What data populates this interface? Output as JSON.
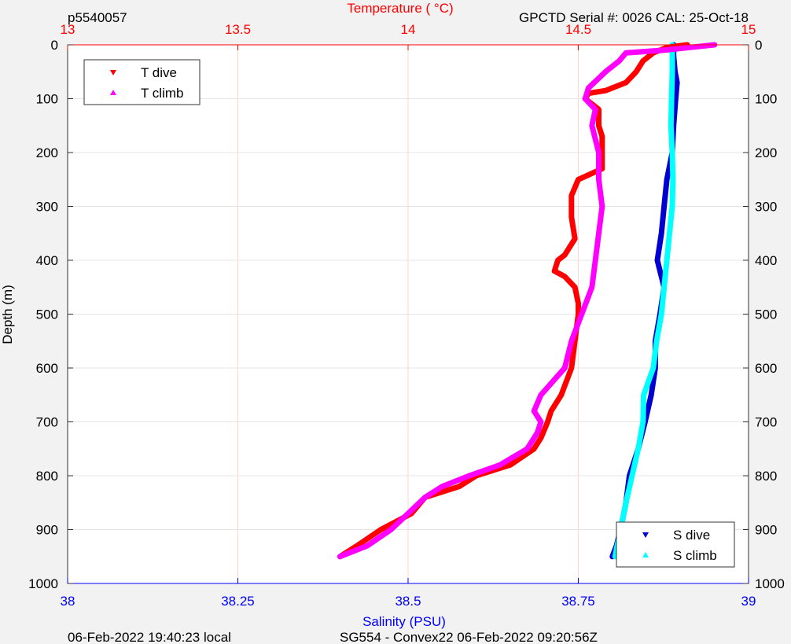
{
  "header": {
    "profile_id": "p5540057",
    "serial_cal": "GPCTD Serial #: 0026 CAL: 25-Oct-18"
  },
  "footer": {
    "local_time": "06-Feb-2022 19:40:23 local",
    "mission": "SG554 - Convex22 06-Feb-2022 09:20:56Z"
  },
  "colors": {
    "background": "#f2f2f2",
    "plot_bg": "#ffffff",
    "temperature_axis": "#ff0000",
    "salinity_axis": "#0000ff",
    "t_dive": "#ff0000",
    "t_climb": "#ff00ff",
    "s_dive": "#0000d0",
    "s_climb": "#00ffff"
  },
  "chart_data": {
    "type": "line",
    "y_axis": {
      "label": "Depth (m)",
      "range": [
        0,
        1000
      ],
      "reversed": true,
      "ticks": [
        0,
        100,
        200,
        300,
        400,
        500,
        600,
        700,
        800,
        900,
        1000
      ],
      "tick_labels": [
        "0",
        "100",
        "200",
        "300",
        "400",
        "500",
        "600",
        "700",
        "800",
        "900",
        "1000"
      ]
    },
    "x_top": {
      "label": "Temperature (    °C)",
      "range": [
        13,
        15
      ],
      "ticks": [
        13,
        13.5,
        14,
        14.5,
        15
      ],
      "tick_labels": [
        "13",
        "13.5",
        "14",
        "14.5",
        "15"
      ]
    },
    "x_bottom": {
      "label": "Salinity (PSU)",
      "range": [
        38,
        39
      ],
      "ticks": [
        38,
        38.25,
        38.5,
        38.75,
        39
      ],
      "tick_labels": [
        "38",
        "38.25",
        "38.5",
        "38.75",
        "39"
      ]
    },
    "grid": "on",
    "legends": [
      {
        "placement": "top-left",
        "entries": [
          {
            "label": "T dive",
            "marker": "down-triangle",
            "series": "t_dive"
          },
          {
            "label": "T climb",
            "marker": "up-triangle",
            "series": "t_climb"
          }
        ]
      },
      {
        "placement": "bottom-right",
        "entries": [
          {
            "label": "S dive",
            "marker": "down-triangle",
            "series": "s_dive"
          },
          {
            "label": "S climb",
            "marker": "up-triangle",
            "series": "s_climb"
          }
        ]
      }
    ],
    "series": [
      {
        "key": "t_dive",
        "name": "T dive",
        "axis": "temperature",
        "depth": [
          0,
          5,
          15,
          30,
          50,
          70,
          85,
          90,
          100,
          120,
          150,
          170,
          200,
          230,
          250,
          280,
          320,
          360,
          390,
          400,
          420,
          430,
          450,
          480,
          500,
          550,
          600,
          650,
          680,
          700,
          730,
          750,
          780,
          800,
          820,
          840,
          870,
          900,
          930,
          950
        ],
        "values": [
          14.82,
          14.76,
          14.72,
          14.69,
          14.67,
          14.64,
          14.58,
          14.53,
          14.52,
          14.56,
          14.56,
          14.57,
          14.57,
          14.57,
          14.5,
          14.48,
          14.48,
          14.49,
          14.46,
          14.44,
          14.43,
          14.46,
          14.49,
          14.5,
          14.5,
          14.49,
          14.48,
          14.45,
          14.42,
          14.41,
          14.39,
          14.37,
          14.3,
          14.2,
          14.15,
          14.05,
          14.01,
          13.92,
          13.85,
          13.8
        ]
      },
      {
        "key": "t_climb",
        "name": "T climb",
        "axis": "temperature",
        "depth": [
          0,
          10,
          15,
          30,
          50,
          80,
          100,
          120,
          150,
          200,
          250,
          300,
          350,
          400,
          450,
          500,
          550,
          600,
          650,
          680,
          700,
          720,
          750,
          780,
          800,
          820,
          840,
          870,
          900,
          930,
          950
        ],
        "values": [
          14.9,
          14.75,
          14.64,
          14.62,
          14.58,
          14.53,
          14.52,
          14.55,
          14.54,
          14.56,
          14.56,
          14.57,
          14.56,
          14.55,
          14.54,
          14.51,
          14.48,
          14.46,
          14.39,
          14.37,
          14.39,
          14.38,
          14.35,
          14.27,
          14.18,
          14.1,
          14.05,
          14.0,
          13.95,
          13.88,
          13.8
        ]
      },
      {
        "key": "s_dive",
        "name": "S dive",
        "axis": "salinity",
        "depth": [
          0,
          20,
          50,
          70,
          100,
          150,
          200,
          250,
          300,
          350,
          400,
          420,
          450,
          500,
          550,
          600,
          650,
          700,
          750,
          800,
          850,
          900,
          930,
          950
        ],
        "values": [
          38.89,
          38.89,
          38.892,
          38.895,
          38.893,
          38.89,
          38.888,
          38.88,
          38.876,
          38.872,
          38.866,
          38.87,
          38.876,
          38.87,
          38.863,
          38.863,
          38.857,
          38.848,
          38.838,
          38.825,
          38.82,
          38.812,
          38.806,
          38.8
        ]
      },
      {
        "key": "s_climb",
        "name": "S climb",
        "axis": "salinity",
        "depth": [
          0,
          50,
          100,
          150,
          200,
          250,
          300,
          350,
          400,
          450,
          500,
          550,
          600,
          650,
          700,
          750,
          800,
          850,
          900,
          930,
          950
        ],
        "values": [
          38.888,
          38.888,
          38.887,
          38.886,
          38.888,
          38.889,
          38.888,
          38.884,
          38.88,
          38.876,
          38.872,
          38.865,
          38.86,
          38.846,
          38.845,
          38.838,
          38.829,
          38.82,
          38.812,
          38.807,
          38.804
        ]
      }
    ]
  }
}
